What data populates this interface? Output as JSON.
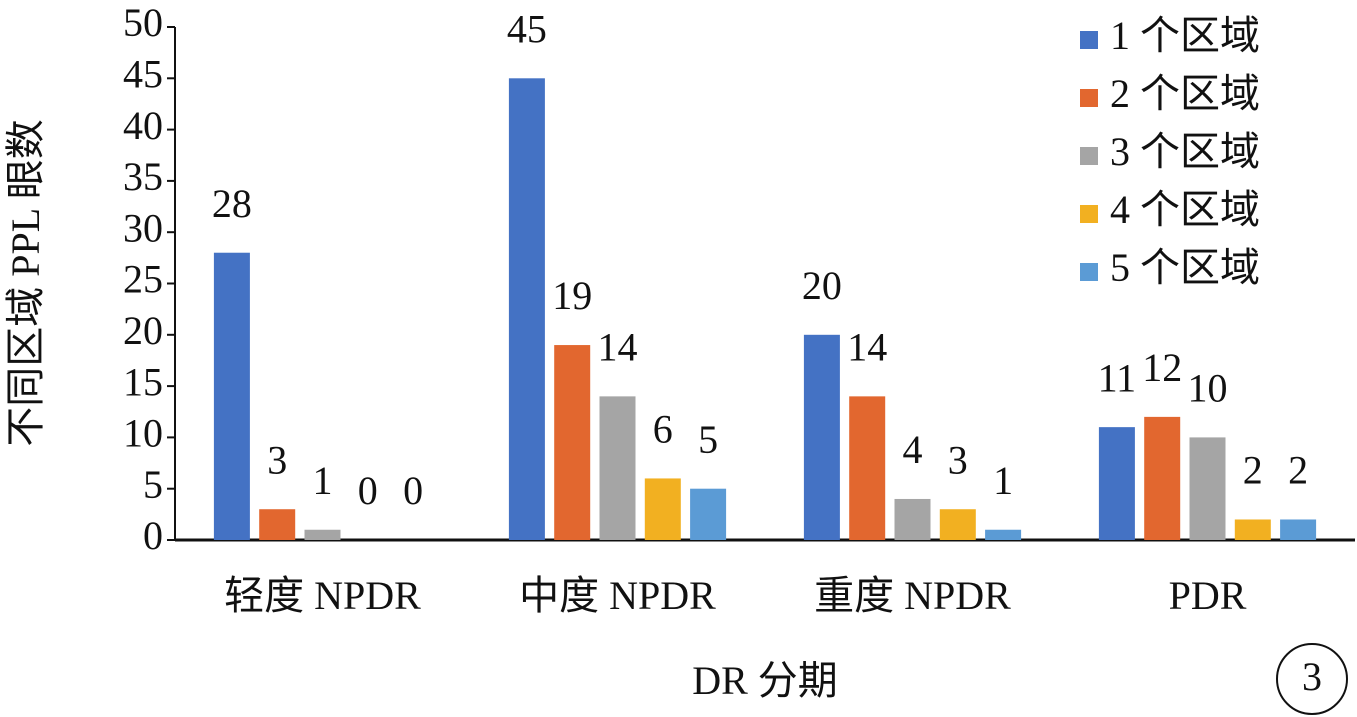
{
  "chart_data": {
    "type": "bar",
    "categories": [
      "轻度 NPDR",
      "中度 NPDR",
      "重度 NPDR",
      "PDR"
    ],
    "series": [
      {
        "name": "1 个区域",
        "color": "#4472c4",
        "values": [
          28,
          45,
          20,
          11
        ]
      },
      {
        "name": "2 个区域",
        "color": "#e2672f",
        "values": [
          3,
          19,
          14,
          12
        ]
      },
      {
        "name": "3 个区域",
        "color": "#a5a5a5",
        "values": [
          1,
          14,
          4,
          10
        ]
      },
      {
        "name": "4 个区域",
        "color": "#f2b021",
        "values": [
          0,
          6,
          3,
          2
        ]
      },
      {
        "name": "5 个区域",
        "color": "#5b9bd5",
        "values": [
          0,
          5,
          1,
          2
        ]
      }
    ],
    "x_label": "DR 分期",
    "y_label": "不同区域 PPL 眼数",
    "ylim": [
      0,
      50
    ],
    "yticks": [
      0,
      5,
      10,
      15,
      20,
      25,
      30,
      35,
      40,
      45,
      50
    ],
    "grid": false,
    "legend": "top-right",
    "annotation": "3"
  }
}
